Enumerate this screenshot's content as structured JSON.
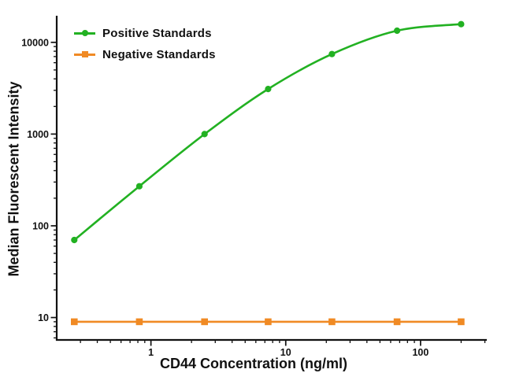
{
  "figure": {
    "background": "#ffffff",
    "axis_color": "#111111",
    "text_color": "#111111"
  },
  "chart_data": {
    "type": "line",
    "title": "",
    "xlabel": "CD44 Concentration (ng/ml)",
    "ylabel": "Median Fluorescent Intensity",
    "x_scale": "log",
    "y_scale": "log",
    "xlim": [
      0.2,
      310
    ],
    "ylim": [
      5.7,
      19500
    ],
    "x_major_ticks": [
      1,
      10,
      100
    ],
    "x_tick_labels": [
      "1",
      "10",
      "100"
    ],
    "y_major_ticks": [
      10,
      100,
      1000,
      10000
    ],
    "y_tick_labels": [
      "10",
      "100",
      "1000",
      "10000"
    ],
    "grid": false,
    "legend_position": "top-left-inside",
    "x": [
      0.27,
      0.82,
      2.5,
      7.4,
      22,
      67,
      200
    ],
    "series": [
      {
        "name": "Positive Standards",
        "color": "#22b122",
        "marker": "circle",
        "smooth": true,
        "values": [
          70,
          270,
          1000,
          3100,
          7450,
          13400,
          15800
        ]
      },
      {
        "name": "Negative Standards",
        "color": "#f08a24",
        "marker": "square",
        "smooth": false,
        "values": [
          9,
          9,
          9,
          9,
          9,
          9,
          9
        ]
      }
    ]
  }
}
